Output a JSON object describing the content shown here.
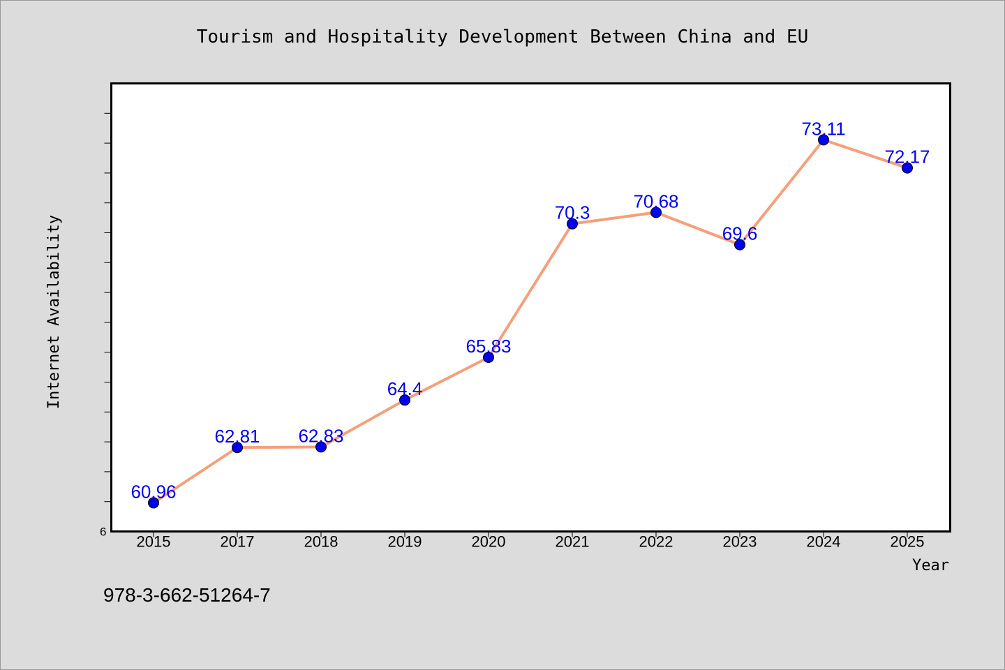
{
  "chart_data": {
    "type": "line",
    "title": "Tourism and Hospitality Development Between China and EU",
    "xlabel": "Year",
    "ylabel": "Internet Availability",
    "categories": [
      "2015",
      "2017",
      "2018",
      "2019",
      "2020",
      "2021",
      "2022",
      "2023",
      "2024",
      "2025"
    ],
    "series": [
      {
        "values": [
          60.96,
          62.81,
          62.83,
          64.4,
          65.83,
          70.3,
          70.68,
          69.6,
          73.11,
          72.17
        ]
      }
    ],
    "data_labels": [
      "60.96",
      "62.81",
      "62.83",
      "64.4",
      "65.83",
      "70.3",
      "70.68",
      "69.6",
      "73.11",
      "72.17"
    ],
    "ylim": [
      60,
      75
    ],
    "y_tick_step": 1,
    "y_tick_labels": [
      "6"
    ],
    "grid": false,
    "line_color": "#f4a07c",
    "marker_color": "#0000ee",
    "label_color": "#0000ee"
  },
  "footnote": "978-3-662-51264-7"
}
